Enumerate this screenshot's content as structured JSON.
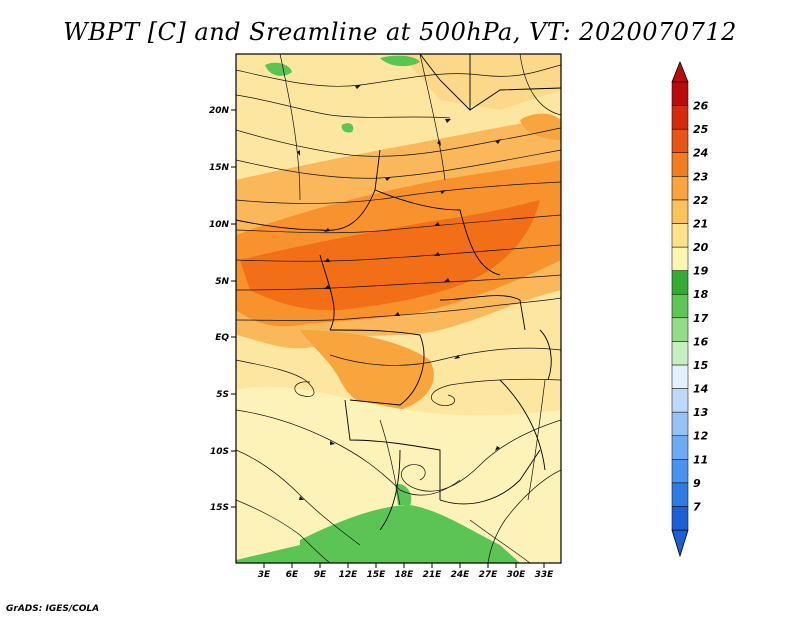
{
  "title": "WBPT [C] and Sreamline at 500hPa, VT: 2020070712",
  "footer": "GrADS: IGES/COLA",
  "map": {
    "lat_labels": [
      "20N",
      "15N",
      "10N",
      "5N",
      "EQ",
      "5S",
      "10S",
      "15S"
    ],
    "lon_labels": [
      "3E",
      "6E",
      "9E",
      "12E",
      "15E",
      "18E",
      "21E",
      "24E",
      "27E",
      "30E",
      "33E"
    ]
  },
  "colorbar": {
    "labels": [
      "7",
      "9",
      "11",
      "12",
      "13",
      "14",
      "15",
      "16",
      "17",
      "18",
      "19",
      "20",
      "21",
      "22",
      "23",
      "24",
      "25",
      "26"
    ],
    "colors": [
      "#1f5fd6",
      "#2f7be4",
      "#4a93ee",
      "#6eaaf2",
      "#96c3f6",
      "#bcdaf8",
      "#e2f1fb",
      "#c8efc0",
      "#94dd88",
      "#5ec657",
      "#35aa35",
      "#fdf5b4",
      "#fde28a",
      "#fcc35d",
      "#f9a43c",
      "#f37c1f",
      "#e75615",
      "#d42a0e",
      "#b80b0b"
    ]
  }
}
